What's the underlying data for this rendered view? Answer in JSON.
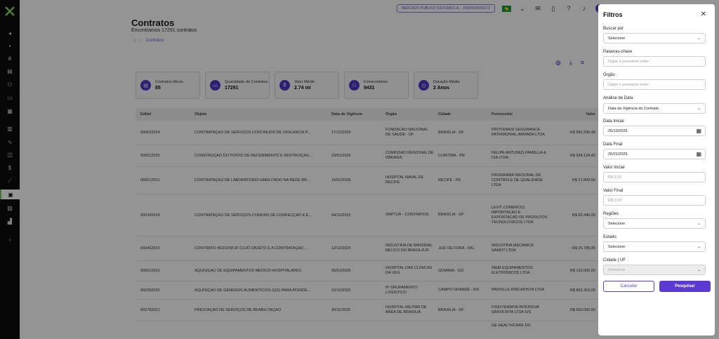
{
  "topbar": {
    "company": "MERCADO PUBLICO SISTEMA S.A. - 20655819000172",
    "avatar_initial": "F"
  },
  "page": {
    "title": "Contratos",
    "subtitle": "Encontramos 17291 contratos",
    "breadcrumb": "Contratos"
  },
  "cards": [
    {
      "label": "Contratos Ativos",
      "value": "85",
      "icon": "document-icon"
    },
    {
      "label": "Quantidade de Contratos",
      "value": "17291",
      "icon": "inbox-icon"
    },
    {
      "label": "Valor Médio",
      "value": "2.74 mi",
      "icon": "dollar-icon"
    },
    {
      "label": "Fornecedores",
      "value": "9431",
      "icon": "users-icon"
    },
    {
      "label": "Duração Média",
      "value": "2 Anos",
      "icon": "clock-icon"
    }
  ],
  "table": {
    "headers": [
      "Edital",
      "Objeto",
      "Data de Vigência",
      "Órgão",
      "Cidade",
      "Fornecedor",
      "Valor"
    ],
    "rows": [
      [
        "000622024",
        "CONTRATAÇÃO DE SERVIÇOS CONTÍNUOS DE VIGILÂNCIA P...",
        "17/12/2025",
        "FUNDACAO NACIONAL DE SAUDE - DF",
        "BRASILIA - DF",
        "PROTEMAXI SEGURANCA PATRIMONIAL ARMADA LTDA",
        "R$ 582.296,48"
      ],
      [
        "000012025",
        "CONSTRUÇÃO DO POSTO DE RECEBIMENTO E DESTRUIÇÃO...",
        "23/01/2026",
        "COMISSAO REGIONAL DE OBRAS/5",
        "CURITIBA - PR",
        "FELIPE ANTUNES PAMELLA & CIA LTDA",
        "R$ 934.134,42"
      ],
      [
        "000012021",
        "CONTRATAÇÃO DE LABORATÓRIO HABILITADO NA REDE BR...",
        "15/01/2026",
        "HOSPITAL NAVAL DE RECIFE",
        "RECIFE - PE",
        "PROGRAMA NACIONAL DE CONTROLE DE QUALIDADE LTDA",
        "R$ 17.899,56"
      ],
      [
        "000342024",
        "CONTRATAÇÃO DE SERVIÇOS COMUNS DE CONFECÇÃO E E...",
        "04/12/2025",
        "SNPTUR - CONTRATOS",
        "BRASILIA - DF",
        "LEVIT COMERCIO, IMPORTACAO E EXPORTACAO DE PRODUTOS TECNOLOGICOS LTDA",
        "R$ 82.440,00"
      ],
      [
        "000462023",
        "CONTRATO 46/2023/FJF CUJO OBJETO É A CONTRATAÇÃO ...",
        "12/12/2025",
        "INDUSTRIA DE MATERIAL BELICO DO BRASIL/FJF",
        "JUIZ DE FORA - MG",
        "INDUSTRIA MECANICA SAMOT LTDA",
        "R$ 26.789,85"
      ],
      [
        "000012022",
        "AQUISIÇÃO DE EQUIPAMENTOS MÉDICO-HOSPITALARES",
        "05/01/2026",
        "HOSPITAL DAS CLINICAS DA UFG",
        "GOIANIA - GO",
        "WEM EQUIPAMENTOS ELETRONICOS LTDA",
        "R$ 132.000,00"
      ],
      [
        "000292025",
        "AQUISIÇÃO DE GÊNEROS ALIMENTÍCIOS (QS) PARA ATENDE...",
        "23/12/2025",
        "9º GRUPAMENTO LOGISTICO",
        "CAMPO GRANDE - MS",
        "PANVILLE ATACADISTA LTDA",
        "R$ 862.410,00"
      ],
      [
        "002782021",
        "PRESTAÇÃO DE SERVIÇOS DE REABILITAÇÃO",
        "30/11/2025",
        "HOSPITAL MILITAR DE AREA DE BRASILIA",
        "BRASILIA - DF",
        "FISIOTERAPIA INTENSIVA SANTA RITA LTDA S/S",
        "R$ 600.000,00"
      ],
      [
        "",
        "",
        "",
        "",
        "",
        "GE HEALTHCARE DO",
        ""
      ]
    ]
  },
  "filters": {
    "title": "Filtros",
    "buscar_por_label": "Buscar por",
    "buscar_por_value": "Selecione",
    "palavras_label": "Palavras-chave",
    "palavras_placeholder": "Digite e pressione enter",
    "orgao_label": "Órgão",
    "orgao_placeholder": "Digite e pressione enter",
    "analise_label": "Análise de Data",
    "analise_value": "Data da Vigência do Contrato",
    "data_inicial_label": "Data Inicial",
    "data_inicial_value": "26/10/2025",
    "data_final_label": "Data Final",
    "data_final_value": "26/01/2026",
    "valor_inicial_label": "Valor Inicial",
    "valor_inicial_placeholder": "R$ 0,00",
    "valor_final_label": "Valor Final",
    "valor_final_placeholder": "R$ 0,00",
    "regioes_label": "Regiões",
    "regioes_value": "Selecione",
    "estado_label": "Estado",
    "estado_value": "Selecione",
    "cidade_label": "Cidade | UF",
    "cidade_value": "Selecione",
    "cancel_label": "Cancelar",
    "search_label": "Pesquisar"
  }
}
